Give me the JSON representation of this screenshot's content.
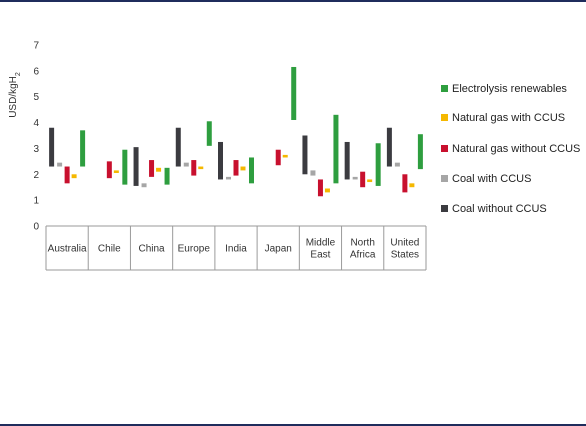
{
  "chart_data": {
    "type": "bar",
    "subtype": "floating-range",
    "ylabel_main": "USD/kgH",
    "ylabel_sub": "2",
    "ylim": [
      0,
      7
    ],
    "yticks": [
      "0",
      "1",
      "2",
      "3",
      "4",
      "5",
      "6",
      "7"
    ],
    "grid": false,
    "legend_position": "right",
    "categories": [
      [
        "Australia"
      ],
      [
        "Chile"
      ],
      [
        "China"
      ],
      [
        "Europe"
      ],
      [
        "India"
      ],
      [
        "Japan"
      ],
      [
        "Middle",
        "East"
      ],
      [
        "North",
        "Africa"
      ],
      [
        "United",
        "States"
      ]
    ],
    "series": [
      {
        "name": "Coal without CCUS",
        "color": "#3b3b40",
        "ranges": [
          [
            2.3,
            3.8
          ],
          null,
          [
            1.55,
            3.05
          ],
          [
            2.3,
            3.8
          ],
          [
            1.8,
            3.25
          ],
          null,
          [
            2.0,
            3.5
          ],
          [
            1.8,
            3.25
          ],
          [
            2.3,
            3.8
          ]
        ]
      },
      {
        "name": "Coal with CCUS",
        "color": "#a6a6a6",
        "ranges": [
          [
            2.3,
            2.45
          ],
          null,
          [
            1.5,
            1.65
          ],
          [
            2.3,
            2.45
          ],
          [
            1.8,
            1.9
          ],
          null,
          [
            1.95,
            2.15
          ],
          [
            1.8,
            1.9
          ],
          [
            2.3,
            2.45
          ]
        ]
      },
      {
        "name": "Natural gas without CCUS",
        "color": "#c8102e",
        "ranges": [
          [
            1.65,
            2.3
          ],
          [
            1.85,
            2.5
          ],
          [
            1.9,
            2.55
          ],
          [
            1.95,
            2.55
          ],
          [
            1.95,
            2.55
          ],
          [
            2.35,
            2.95
          ],
          [
            1.15,
            1.8
          ],
          [
            1.5,
            2.1
          ],
          [
            1.3,
            2.0
          ]
        ]
      },
      {
        "name": "Natural gas with CCUS",
        "color": "#f5b800",
        "ranges": [
          [
            1.85,
            2.0
          ],
          [
            2.05,
            2.15
          ],
          [
            2.1,
            2.25
          ],
          [
            2.2,
            2.3
          ],
          [
            2.15,
            2.3
          ],
          [
            2.65,
            2.75
          ],
          [
            1.3,
            1.45
          ],
          [
            1.7,
            1.8
          ],
          [
            1.5,
            1.65
          ]
        ]
      },
      {
        "name": "Electrolysis renewables",
        "color": "#2e9e3f",
        "ranges": [
          [
            2.3,
            3.7
          ],
          [
            1.6,
            2.95
          ],
          [
            1.6,
            2.25
          ],
          [
            3.1,
            4.05
          ],
          [
            1.65,
            2.65
          ],
          [
            4.1,
            6.15
          ],
          [
            1.65,
            4.3
          ],
          [
            1.55,
            3.2
          ],
          [
            2.2,
            3.55
          ]
        ]
      }
    ],
    "legend_order": [
      "Electrolysis renewables",
      "Natural gas with CCUS",
      "Natural gas without CCUS",
      "Coal with CCUS",
      "Coal without CCUS"
    ]
  }
}
